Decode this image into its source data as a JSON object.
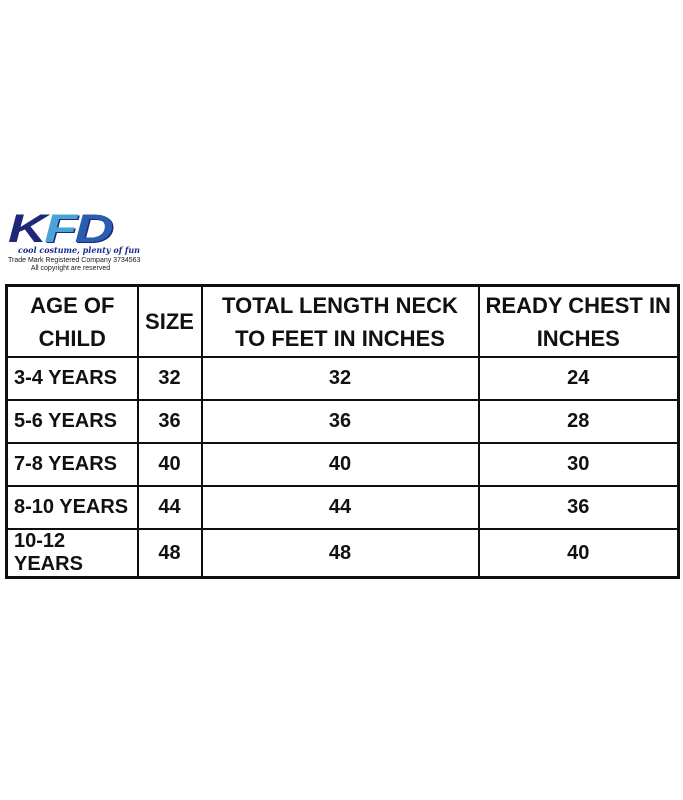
{
  "brand": {
    "name": "KFD",
    "letters": [
      "K",
      "F",
      "D"
    ],
    "tagline": "cool costume, plenty of fun",
    "trademark_line": "Trade Mark Registered Company 3734563",
    "copyright_line": "All copyright are reserved",
    "colors": {
      "logo_navy": "#1f2877",
      "logo_light_blue": "#4aa3d8",
      "logo_blue": "#2a5cb0",
      "table_border": "#0f0f0f"
    }
  },
  "chart_data": {
    "type": "table",
    "title": "Child size chart",
    "columns": [
      "AGE OF CHILD",
      "SIZE",
      "TOTAL LENGTH NECK TO FEET IN INCHES",
      "READY CHEST IN INCHES"
    ],
    "columns_display": [
      "AGE OF\nCHILD",
      "SIZE",
      "TOTAL LENGTH NECK\nTO FEET IN INCHES",
      "READY CHEST IN\nINCHES"
    ],
    "rows": [
      [
        "3-4 YEARS",
        "32",
        "32",
        "24"
      ],
      [
        "5-6 YEARS",
        "36",
        "36",
        "28"
      ],
      [
        "7-8 YEARS",
        "40",
        "40",
        "30"
      ],
      [
        "8-10 YEARS",
        "44",
        "44",
        "36"
      ],
      [
        "10-12 YEARS",
        "48",
        "48",
        "40"
      ]
    ]
  }
}
